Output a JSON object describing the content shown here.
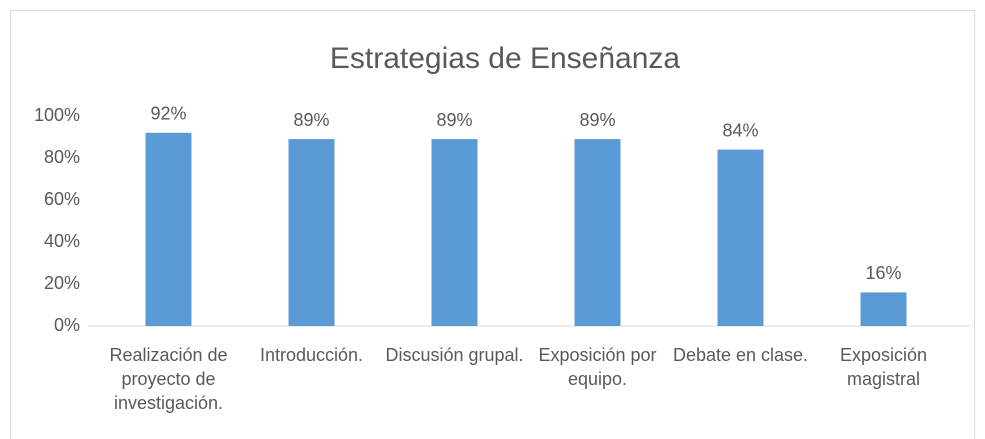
{
  "chart_data": {
    "type": "bar",
    "title": "Estrategias de Enseñanza",
    "categories": [
      "Realización de proyecto de investigación.",
      "Introducción.",
      "Discusión grupal.",
      "Exposición por equipo.",
      "Debate en clase.",
      "Exposición magistral"
    ],
    "values": [
      92,
      89,
      89,
      89,
      84,
      16
    ],
    "value_labels": [
      "92%",
      "89%",
      "89%",
      "89%",
      "84%",
      "16%"
    ],
    "color": "#5b9bd5",
    "ylim": [
      0,
      100
    ],
    "yticks": [
      {
        "value": 0,
        "label": "0%"
      },
      {
        "value": 20,
        "label": "20%"
      },
      {
        "value": 40,
        "label": "40%"
      },
      {
        "value": 60,
        "label": "60%"
      },
      {
        "value": 80,
        "label": "80%"
      },
      {
        "value": 100,
        "label": "100%"
      }
    ],
    "grid": false
  }
}
